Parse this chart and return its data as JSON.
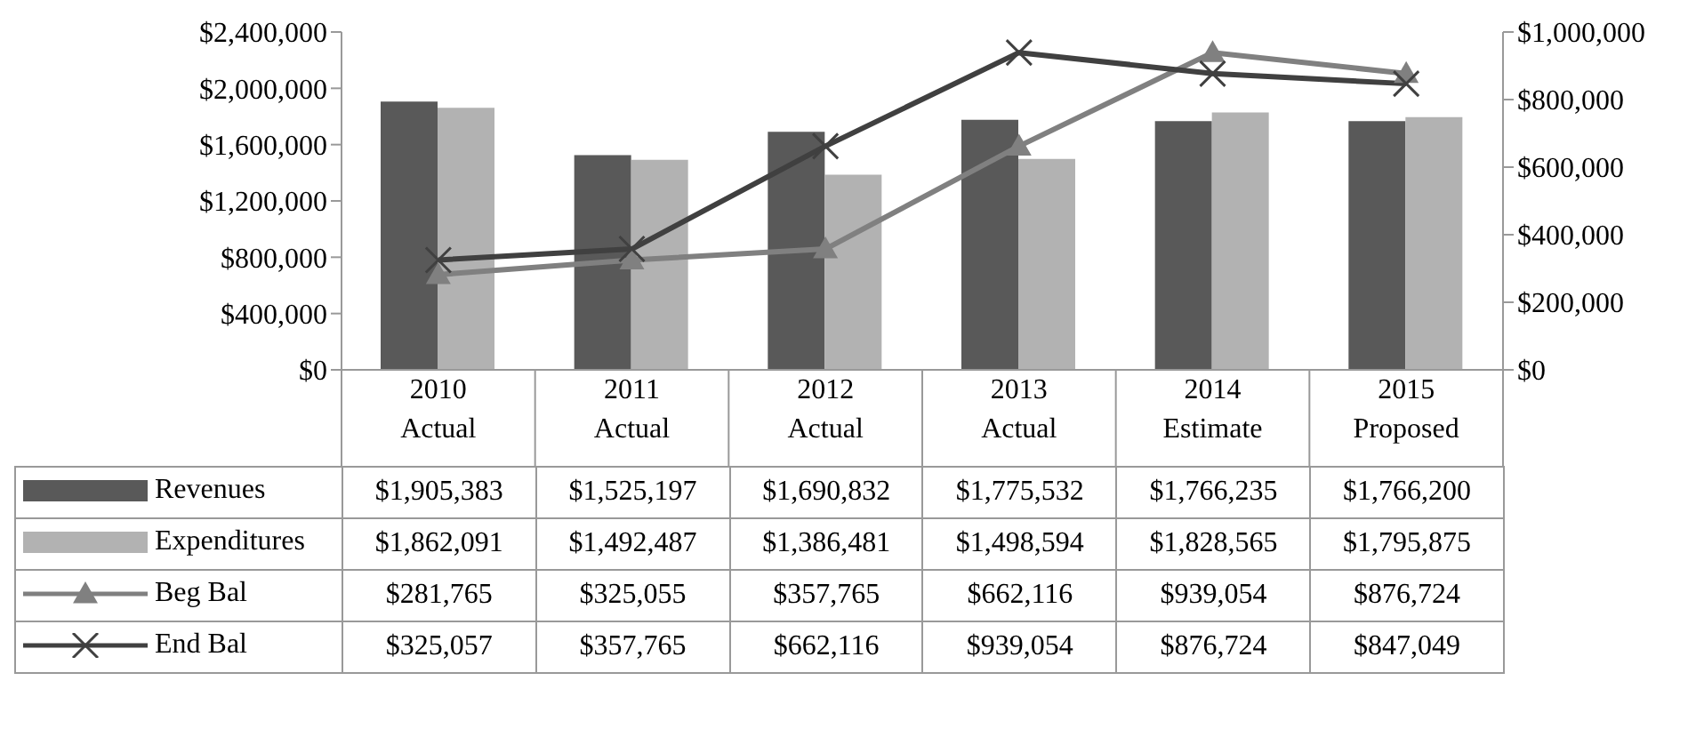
{
  "chart_data": {
    "type": "bar",
    "categories": [
      "2010 Actual",
      "2011 Actual",
      "2012 Actual",
      "2013 Actual",
      "2014 Estimate",
      "2015 Proposed"
    ],
    "series": [
      {
        "name": "Revenues",
        "color": "#595959",
        "values": [
          1905383,
          1525197,
          1690832,
          1775532,
          1766235,
          1766200
        ],
        "value_labels": [
          "$1,905,383",
          "$1,525,197",
          "$1,690,832",
          "$1,775,532",
          "$1,766,235",
          "$1,766,200"
        ]
      },
      {
        "name": "Expenditures",
        "color": "#b2b2b2",
        "values": [
          1862091,
          1492487,
          1386481,
          1498594,
          1828565,
          1795875
        ],
        "value_labels": [
          "$1,862,091",
          "$1,492,487",
          "$1,386,481",
          "$1,498,594",
          "$1,828,565",
          "$1,795,875"
        ]
      },
      {
        "name": "Beg Bal",
        "type": "line",
        "axis": "y2",
        "marker": "triangle",
        "color": "#808080",
        "values": [
          281765,
          325055,
          357765,
          662116,
          939054,
          876724
        ],
        "value_labels": [
          "$281,765",
          "$325,055",
          "$357,765",
          "$662,116",
          "$939,054",
          "$876,724"
        ]
      },
      {
        "name": "End Bal",
        "type": "line",
        "axis": "y2",
        "marker": "cross",
        "color": "#404040",
        "values": [
          325057,
          357765,
          662116,
          939054,
          876724,
          847049
        ],
        "value_labels": [
          "$325,057",
          "$357,765",
          "$662,116",
          "$939,054",
          "$876,724",
          "$847,049"
        ]
      }
    ],
    "ylim": [
      0,
      2400000
    ],
    "yticks": [
      {
        "value": 0,
        "label": "$0"
      },
      {
        "value": 400000,
        "label": "$400,000"
      },
      {
        "value": 800000,
        "label": "$800,000"
      },
      {
        "value": 1200000,
        "label": "$1,200,000"
      },
      {
        "value": 1600000,
        "label": "$1,600,000"
      },
      {
        "value": 2000000,
        "label": "$2,000,000"
      },
      {
        "value": 2400000,
        "label": "$2,400,000"
      }
    ],
    "y2lim": [
      0,
      1000000
    ],
    "y2ticks": [
      {
        "value": 0,
        "label": "$0"
      },
      {
        "value": 200000,
        "label": "$200,000"
      },
      {
        "value": 400000,
        "label": "$400,000"
      },
      {
        "value": 600000,
        "label": "$600,000"
      },
      {
        "value": 800000,
        "label": "$800,000"
      },
      {
        "value": 1000000,
        "label": "$1,000,000"
      }
    ],
    "grid": false,
    "legend": "bottom",
    "line_style": "solid"
  }
}
